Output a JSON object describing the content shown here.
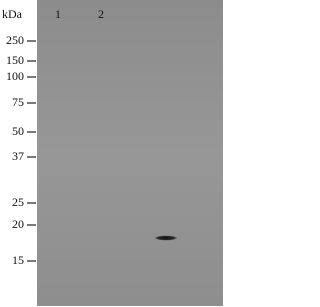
{
  "header": {
    "unit": "kDa"
  },
  "lanes": [
    "1",
    "2"
  ],
  "markers": [
    "250",
    "150",
    "100",
    "75",
    "50",
    "37",
    "25",
    "20",
    "15"
  ]
}
